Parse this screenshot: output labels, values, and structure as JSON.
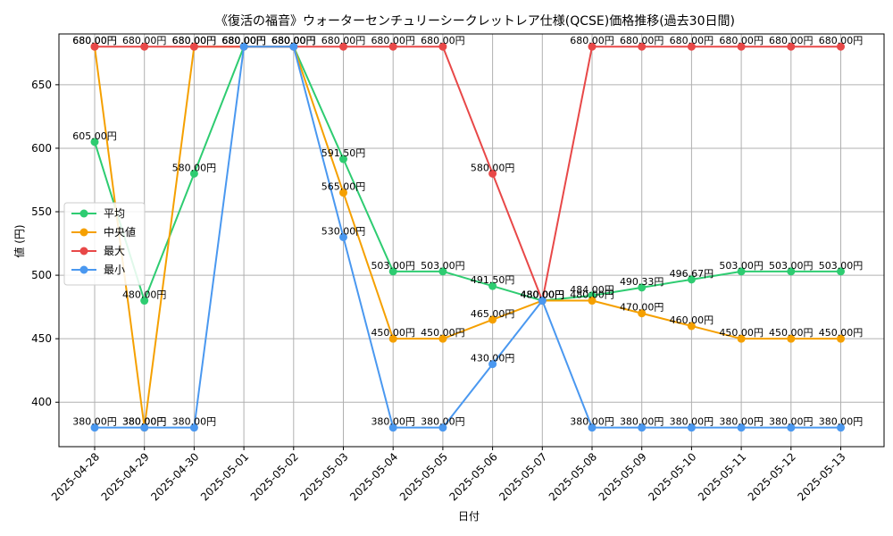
{
  "chart_data": {
    "type": "line",
    "title": "《復活の福音》ウォーターセンチュリーシークレットレア仕様(QCSE)価格推移(過去30日間)",
    "xlabel": "日付",
    "ylabel": "値 (円)",
    "ylim": [
      365,
      690
    ],
    "yticks": [
      400,
      450,
      500,
      550,
      600,
      650
    ],
    "grid": true,
    "legend_position": "center-left",
    "value_suffix": "円",
    "categories": [
      "2025-04-28",
      "2025-04-29",
      "2025-04-30",
      "2025-05-01",
      "2025-05-02",
      "2025-05-03",
      "2025-05-04",
      "2025-05-05",
      "2025-05-06",
      "2025-05-07",
      "2025-05-08",
      "2025-05-09",
      "2025-05-10",
      "2025-05-11",
      "2025-05-12",
      "2025-05-13"
    ],
    "series": [
      {
        "name": "平均",
        "color": "#2ecc71",
        "values": [
          605,
          480,
          580,
          680,
          680,
          591.5,
          503,
          503,
          491.5,
          480,
          484,
          490.33,
          496.67,
          503,
          503,
          503
        ]
      },
      {
        "name": "中央値",
        "color": "#f5a000",
        "values": [
          680,
          380,
          680,
          680,
          680,
          565,
          450,
          450,
          465,
          480,
          480,
          470,
          460,
          450,
          450,
          450
        ]
      },
      {
        "name": "最大",
        "color": "#e84848",
        "values": [
          680,
          680,
          680,
          680,
          680,
          680,
          680,
          680,
          580,
          480,
          680,
          680,
          680,
          680,
          680,
          680
        ]
      },
      {
        "name": "最小",
        "color": "#4a98f0",
        "values": [
          380,
          380,
          380,
          680,
          680,
          530,
          380,
          380,
          430,
          480,
          380,
          380,
          380,
          380,
          380,
          380
        ]
      }
    ]
  }
}
